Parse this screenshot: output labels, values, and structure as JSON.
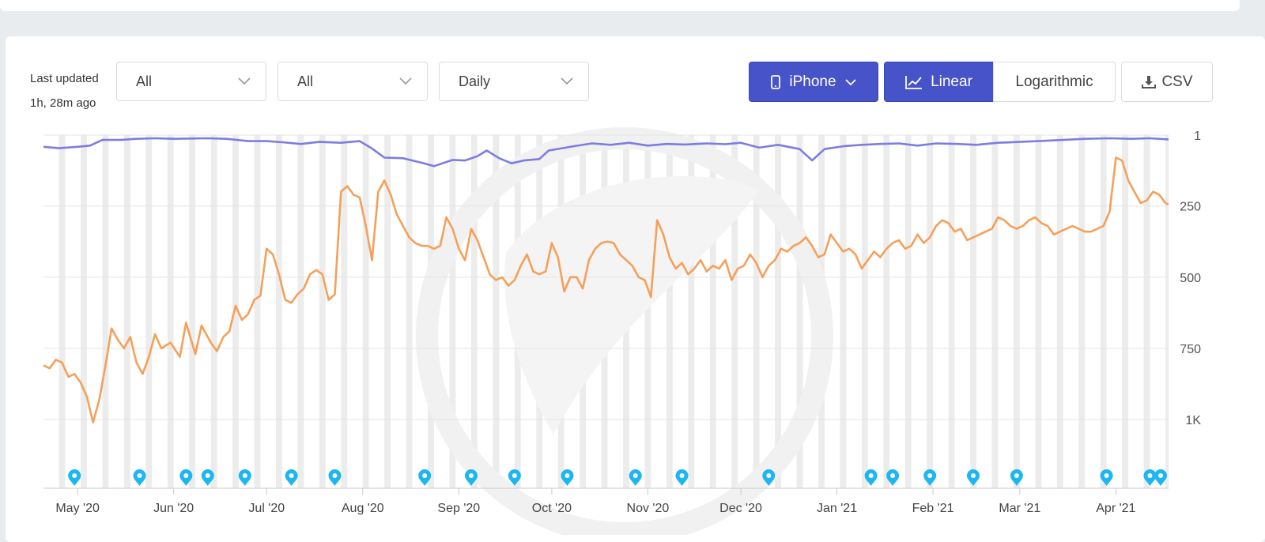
{
  "header": {
    "last_updated_label": "Last updated",
    "last_updated_value": "1h, 28m ago"
  },
  "filters": [
    {
      "value": "All"
    },
    {
      "value": "All"
    },
    {
      "value": "Daily"
    }
  ],
  "device": {
    "label": "iPhone",
    "icon": "phone-icon"
  },
  "scale": {
    "options": [
      "Linear",
      "Logarithmic"
    ],
    "selected": "Linear",
    "linear_icon": "line-chart-icon"
  },
  "export": {
    "label": "CSV",
    "icon": "download-icon"
  },
  "colors": {
    "accent": "#4753c9",
    "series_overall": "#7b7de3",
    "series_category": "#f5a05a",
    "marker": "#1cb6f0",
    "weekend_band": "#ececec"
  },
  "chart_data": {
    "type": "line",
    "title": "",
    "y_axis": {
      "reversed": true,
      "ticks": [
        1,
        250,
        500,
        750,
        1000
      ],
      "tick_labels": [
        "1",
        "250",
        "500",
        "750",
        "1K"
      ],
      "range": [
        1,
        1250
      ]
    },
    "x_axis": {
      "range": [
        "2020-04-20",
        "2021-04-18"
      ],
      "ticks": [
        "2020-05-01",
        "2020-06-01",
        "2020-07-01",
        "2020-08-01",
        "2020-09-01",
        "2020-10-01",
        "2020-11-01",
        "2020-12-01",
        "2021-01-01",
        "2021-02-01",
        "2021-03-01",
        "2021-04-01"
      ],
      "tick_labels": [
        "May '20",
        "Jun '20",
        "Jul '20",
        "Aug '20",
        "Sep '20",
        "Oct '20",
        "Nov '20",
        "Dec '20",
        "Jan '21",
        "Feb '21",
        "Mar '21",
        "Apr '21"
      ]
    },
    "grid": true,
    "weekend_bands": true,
    "series": [
      {
        "color": "#7b7de3",
        "points": [
          [
            "2020-04-20",
            42
          ],
          [
            "2020-04-25",
            47
          ],
          [
            "2020-05-01",
            42
          ],
          [
            "2020-05-05",
            38
          ],
          [
            "2020-05-09",
            18
          ],
          [
            "2020-05-15",
            18
          ],
          [
            "2020-05-20",
            14
          ],
          [
            "2020-05-26",
            12
          ],
          [
            "2020-06-01",
            14
          ],
          [
            "2020-06-07",
            13
          ],
          [
            "2020-06-12",
            12
          ],
          [
            "2020-06-18",
            14
          ],
          [
            "2020-06-25",
            22
          ],
          [
            "2020-07-01",
            22
          ],
          [
            "2020-07-06",
            26
          ],
          [
            "2020-07-12",
            32
          ],
          [
            "2020-07-18",
            25
          ],
          [
            "2020-07-25",
            28
          ],
          [
            "2020-07-31",
            22
          ],
          [
            "2020-08-04",
            48
          ],
          [
            "2020-08-08",
            80
          ],
          [
            "2020-08-14",
            82
          ],
          [
            "2020-08-20",
            98
          ],
          [
            "2020-08-24",
            110
          ],
          [
            "2020-08-30",
            88
          ],
          [
            "2020-09-03",
            90
          ],
          [
            "2020-09-07",
            75
          ],
          [
            "2020-09-10",
            55
          ],
          [
            "2020-09-14",
            82
          ],
          [
            "2020-09-18",
            100
          ],
          [
            "2020-09-22",
            90
          ],
          [
            "2020-09-27",
            85
          ],
          [
            "2020-09-30",
            55
          ],
          [
            "2020-10-04",
            48
          ],
          [
            "2020-10-08",
            40
          ],
          [
            "2020-10-14",
            30
          ],
          [
            "2020-10-20",
            35
          ],
          [
            "2020-10-26",
            28
          ],
          [
            "2020-11-01",
            38
          ],
          [
            "2020-11-07",
            32
          ],
          [
            "2020-11-13",
            34
          ],
          [
            "2020-11-20",
            30
          ],
          [
            "2020-11-26",
            33
          ],
          [
            "2020-12-01",
            28
          ],
          [
            "2020-12-07",
            45
          ],
          [
            "2020-12-13",
            35
          ],
          [
            "2020-12-20",
            50
          ],
          [
            "2020-12-24",
            90
          ],
          [
            "2020-12-28",
            50
          ],
          [
            "2021-01-03",
            40
          ],
          [
            "2021-01-09",
            35
          ],
          [
            "2021-01-15",
            32
          ],
          [
            "2021-01-21",
            30
          ],
          [
            "2021-01-27",
            38
          ],
          [
            "2021-02-02",
            30
          ],
          [
            "2021-02-09",
            32
          ],
          [
            "2021-02-15",
            35
          ],
          [
            "2021-02-22",
            28
          ],
          [
            "2021-03-01",
            25
          ],
          [
            "2021-03-07",
            22
          ],
          [
            "2021-03-15",
            18
          ],
          [
            "2021-03-22",
            14
          ],
          [
            "2021-03-30",
            12
          ],
          [
            "2021-04-06",
            14
          ],
          [
            "2021-04-12",
            12
          ],
          [
            "2021-04-18",
            16
          ]
        ]
      },
      {
        "color": "#f5a05a",
        "points": [
          [
            "2020-04-20",
            810
          ],
          [
            "2020-04-22",
            820
          ],
          [
            "2020-04-24",
            790
          ],
          [
            "2020-04-26",
            800
          ],
          [
            "2020-04-28",
            850
          ],
          [
            "2020-04-30",
            840
          ],
          [
            "2020-05-02",
            870
          ],
          [
            "2020-05-04",
            920
          ],
          [
            "2020-05-06",
            1010
          ],
          [
            "2020-05-08",
            930
          ],
          [
            "2020-05-10",
            810
          ],
          [
            "2020-05-12",
            680
          ],
          [
            "2020-05-14",
            720
          ],
          [
            "2020-05-16",
            750
          ],
          [
            "2020-05-18",
            710
          ],
          [
            "2020-05-20",
            800
          ],
          [
            "2020-05-22",
            840
          ],
          [
            "2020-05-24",
            780
          ],
          [
            "2020-05-26",
            700
          ],
          [
            "2020-05-28",
            750
          ],
          [
            "2020-05-31",
            730
          ],
          [
            "2020-06-03",
            780
          ],
          [
            "2020-06-05",
            660
          ],
          [
            "2020-06-08",
            770
          ],
          [
            "2020-06-10",
            670
          ],
          [
            "2020-06-13",
            730
          ],
          [
            "2020-06-15",
            760
          ],
          [
            "2020-06-17",
            710
          ],
          [
            "2020-06-19",
            690
          ],
          [
            "2020-06-21",
            600
          ],
          [
            "2020-06-23",
            650
          ],
          [
            "2020-06-25",
            630
          ],
          [
            "2020-06-27",
            580
          ],
          [
            "2020-06-29",
            565
          ],
          [
            "2020-07-01",
            400
          ],
          [
            "2020-07-03",
            420
          ],
          [
            "2020-07-05",
            490
          ],
          [
            "2020-07-07",
            580
          ],
          [
            "2020-07-09",
            590
          ],
          [
            "2020-07-11",
            560
          ],
          [
            "2020-07-13",
            540
          ],
          [
            "2020-07-15",
            490
          ],
          [
            "2020-07-17",
            475
          ],
          [
            "2020-07-19",
            490
          ],
          [
            "2020-07-21",
            580
          ],
          [
            "2020-07-23",
            560
          ],
          [
            "2020-07-25",
            200
          ],
          [
            "2020-07-27",
            180
          ],
          [
            "2020-07-29",
            210
          ],
          [
            "2020-07-31",
            220
          ],
          [
            "2020-08-02",
            320
          ],
          [
            "2020-08-04",
            440
          ],
          [
            "2020-08-06",
            200
          ],
          [
            "2020-08-08",
            160
          ],
          [
            "2020-08-10",
            210
          ],
          [
            "2020-08-12",
            280
          ],
          [
            "2020-08-14",
            320
          ],
          [
            "2020-08-16",
            360
          ],
          [
            "2020-08-18",
            380
          ],
          [
            "2020-08-20",
            390
          ],
          [
            "2020-08-22",
            390
          ],
          [
            "2020-08-24",
            400
          ],
          [
            "2020-08-26",
            390
          ],
          [
            "2020-08-28",
            290
          ],
          [
            "2020-08-30",
            330
          ],
          [
            "2020-09-01",
            400
          ],
          [
            "2020-09-03",
            440
          ],
          [
            "2020-09-05",
            330
          ],
          [
            "2020-09-07",
            370
          ],
          [
            "2020-09-09",
            430
          ],
          [
            "2020-09-11",
            490
          ],
          [
            "2020-09-13",
            510
          ],
          [
            "2020-09-15",
            500
          ],
          [
            "2020-09-17",
            530
          ],
          [
            "2020-09-19",
            510
          ],
          [
            "2020-09-21",
            460
          ],
          [
            "2020-09-23",
            420
          ],
          [
            "2020-09-25",
            480
          ],
          [
            "2020-09-27",
            490
          ],
          [
            "2020-09-29",
            480
          ],
          [
            "2020-10-01",
            380
          ],
          [
            "2020-10-03",
            430
          ],
          [
            "2020-10-05",
            550
          ],
          [
            "2020-10-07",
            500
          ],
          [
            "2020-10-09",
            500
          ],
          [
            "2020-10-11",
            540
          ],
          [
            "2020-10-13",
            440
          ],
          [
            "2020-10-15",
            400
          ],
          [
            "2020-10-17",
            380
          ],
          [
            "2020-10-19",
            375
          ],
          [
            "2020-10-21",
            380
          ],
          [
            "2020-10-23",
            420
          ],
          [
            "2020-10-25",
            440
          ],
          [
            "2020-10-27",
            460
          ],
          [
            "2020-10-29",
            500
          ],
          [
            "2020-10-31",
            510
          ],
          [
            "2020-11-02",
            570
          ],
          [
            "2020-11-04",
            300
          ],
          [
            "2020-11-06",
            350
          ],
          [
            "2020-11-08",
            430
          ],
          [
            "2020-11-10",
            470
          ],
          [
            "2020-11-12",
            450
          ],
          [
            "2020-11-14",
            490
          ],
          [
            "2020-11-16",
            470
          ],
          [
            "2020-11-18",
            440
          ],
          [
            "2020-11-20",
            480
          ],
          [
            "2020-11-22",
            460
          ],
          [
            "2020-11-24",
            470
          ],
          [
            "2020-11-26",
            440
          ],
          [
            "2020-11-28",
            510
          ],
          [
            "2020-11-30",
            470
          ],
          [
            "2020-12-02",
            460
          ],
          [
            "2020-12-04",
            420
          ],
          [
            "2020-12-06",
            450
          ],
          [
            "2020-12-08",
            500
          ],
          [
            "2020-12-10",
            460
          ],
          [
            "2020-12-12",
            440
          ],
          [
            "2020-12-14",
            400
          ],
          [
            "2020-12-16",
            410
          ],
          [
            "2020-12-18",
            390
          ],
          [
            "2020-12-20",
            380
          ],
          [
            "2020-12-22",
            360
          ],
          [
            "2020-12-24",
            390
          ],
          [
            "2020-12-26",
            430
          ],
          [
            "2020-12-28",
            420
          ],
          [
            "2020-12-30",
            350
          ],
          [
            "2021-01-01",
            380
          ],
          [
            "2021-01-03",
            410
          ],
          [
            "2021-01-05",
            400
          ],
          [
            "2021-01-07",
            420
          ],
          [
            "2021-01-09",
            470
          ],
          [
            "2021-01-11",
            440
          ],
          [
            "2021-01-13",
            410
          ],
          [
            "2021-01-15",
            430
          ],
          [
            "2021-01-17",
            400
          ],
          [
            "2021-01-19",
            380
          ],
          [
            "2021-01-21",
            370
          ],
          [
            "2021-01-23",
            400
          ],
          [
            "2021-01-25",
            390
          ],
          [
            "2021-01-27",
            350
          ],
          [
            "2021-01-29",
            380
          ],
          [
            "2021-01-31",
            360
          ],
          [
            "2021-02-02",
            320
          ],
          [
            "2021-02-04",
            300
          ],
          [
            "2021-02-06",
            310
          ],
          [
            "2021-02-08",
            340
          ],
          [
            "2021-02-10",
            330
          ],
          [
            "2021-02-12",
            370
          ],
          [
            "2021-02-14",
            360
          ],
          [
            "2021-02-16",
            350
          ],
          [
            "2021-02-18",
            340
          ],
          [
            "2021-02-20",
            330
          ],
          [
            "2021-02-22",
            290
          ],
          [
            "2021-02-24",
            300
          ],
          [
            "2021-02-26",
            320
          ],
          [
            "2021-02-28",
            330
          ],
          [
            "2021-03-02",
            320
          ],
          [
            "2021-03-04",
            300
          ],
          [
            "2021-03-06",
            290
          ],
          [
            "2021-03-08",
            310
          ],
          [
            "2021-03-10",
            320
          ],
          [
            "2021-03-12",
            350
          ],
          [
            "2021-03-14",
            340
          ],
          [
            "2021-03-16",
            330
          ],
          [
            "2021-03-18",
            320
          ],
          [
            "2021-03-20",
            330
          ],
          [
            "2021-03-22",
            340
          ],
          [
            "2021-03-24",
            340
          ],
          [
            "2021-03-26",
            330
          ],
          [
            "2021-03-28",
            320
          ],
          [
            "2021-03-30",
            270
          ],
          [
            "2021-04-01",
            80
          ],
          [
            "2021-04-03",
            90
          ],
          [
            "2021-04-05",
            160
          ],
          [
            "2021-04-07",
            200
          ],
          [
            "2021-04-09",
            240
          ],
          [
            "2021-04-11",
            230
          ],
          [
            "2021-04-13",
            200
          ],
          [
            "2021-04-15",
            210
          ],
          [
            "2021-04-17",
            240
          ],
          [
            "2021-04-18",
            245
          ]
        ]
      }
    ],
    "markers": [
      "2020-04-30",
      "2020-05-21",
      "2020-06-05",
      "2020-06-12",
      "2020-06-24",
      "2020-07-09",
      "2020-07-23",
      "2020-08-21",
      "2020-09-05",
      "2020-09-19",
      "2020-10-06",
      "2020-10-28",
      "2020-11-12",
      "2020-12-10",
      "2021-01-12",
      "2021-01-19",
      "2021-01-31",
      "2021-02-14",
      "2021-02-28",
      "2021-03-29",
      "2021-04-12",
      "2021-04-24"
    ]
  }
}
